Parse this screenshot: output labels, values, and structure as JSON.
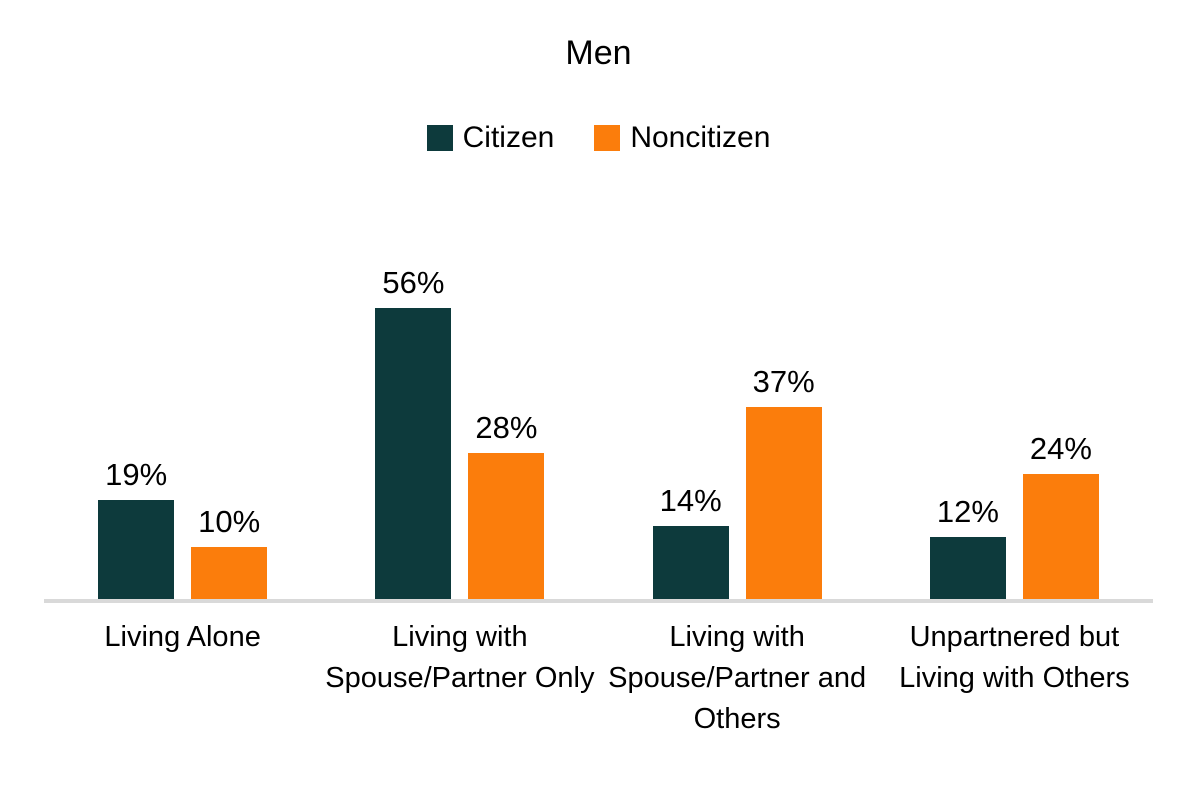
{
  "chart_data": {
    "type": "bar",
    "title": "Men",
    "categories": [
      "Living Alone",
      "Living with Spouse/Partner Only",
      "Living with Spouse/Partner and Others",
      "Unpartnered but Living with Others"
    ],
    "series": [
      {
        "name": "Citizen",
        "color": "#0d3a3c",
        "values": [
          19,
          56,
          14,
          12
        ]
      },
      {
        "name": "Noncitizen",
        "color": "#fb7d0c",
        "values": [
          10,
          28,
          37,
          24
        ]
      }
    ],
    "data_labels": [
      "19%",
      "10%",
      "56%",
      "28%",
      "14%",
      "37%",
      "12%",
      "24%"
    ],
    "value_suffix": "%",
    "legend_position": "top",
    "grid": false,
    "axis_line_color": "#d9d9d9",
    "text_color": "#000000",
    "background_color": "#ffffff"
  }
}
